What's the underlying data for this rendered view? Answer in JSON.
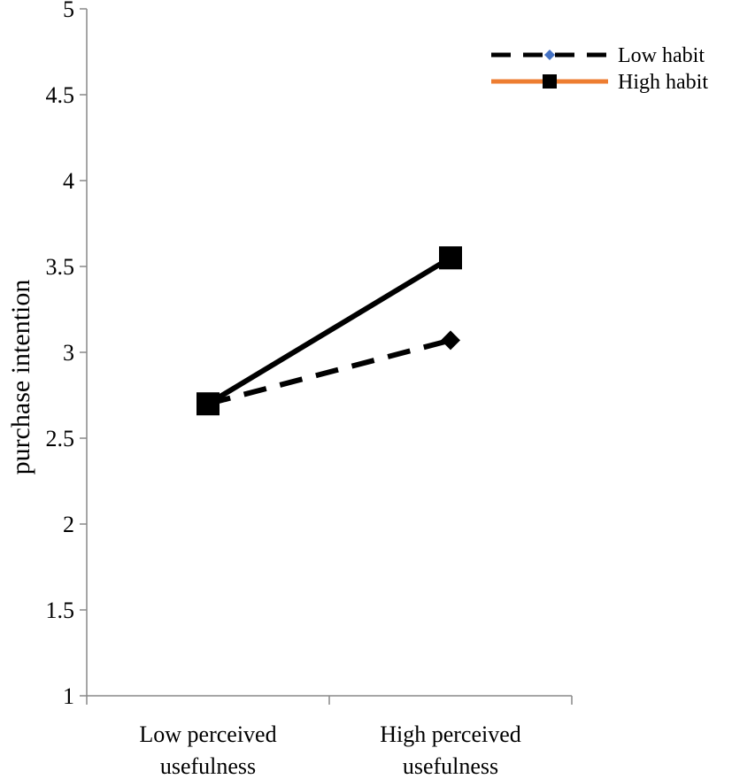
{
  "chart_data": {
    "type": "line",
    "title": "",
    "xlabel": "",
    "ylabel": "purchase intention",
    "ylim": [
      1,
      5
    ],
    "yticks": [
      1,
      1.5,
      2,
      2.5,
      3,
      3.5,
      4,
      4.5,
      5
    ],
    "ytick_labels": [
      "1",
      "1.5",
      "2",
      "2.5",
      "3",
      "3.5",
      "4",
      "4.5",
      "5"
    ],
    "categories": [
      [
        "Low perceived",
        "usefulness"
      ],
      [
        "High perceived",
        "usefulness"
      ]
    ],
    "series": [
      {
        "name": "Low habit",
        "values": [
          2.7,
          3.07
        ],
        "line_style": "dashed",
        "line_color": "#000000",
        "marker": "diamond",
        "legend_line_color": "#000000",
        "legend_marker_color": "#4472C4"
      },
      {
        "name": "High habit",
        "values": [
          2.7,
          3.55
        ],
        "line_style": "solid",
        "line_color": "#000000",
        "marker": "square",
        "legend_line_color": "#ED7D31",
        "legend_marker_color": "#000000"
      }
    ],
    "legend_position": "top-right",
    "grid": false
  }
}
